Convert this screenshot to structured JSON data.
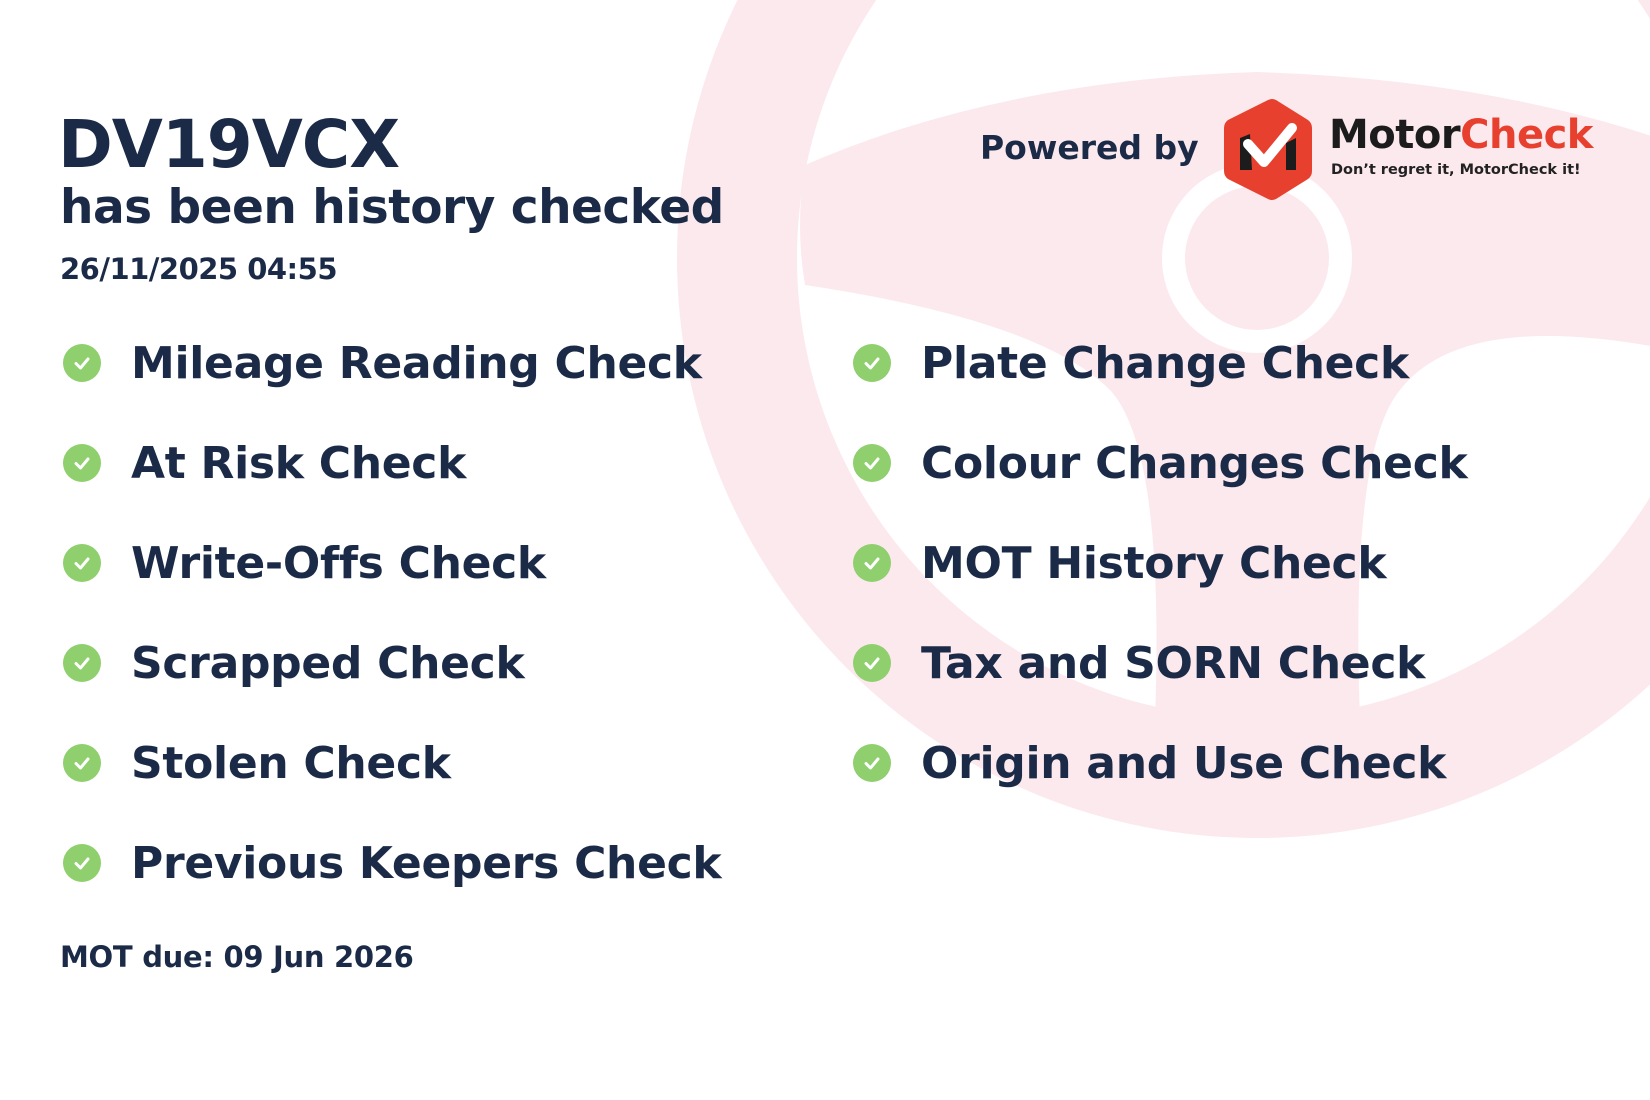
{
  "report": {
    "plate": "DV19VCX",
    "subtitle": "has been history checked",
    "datetime": "26/11/2025 04:55",
    "mot_due": "MOT due: 09 Jun 2026"
  },
  "branding": {
    "powered_by": "Powered by",
    "brand_part1": "Motor",
    "brand_part2": "Check",
    "tagline": "Don’t regret it, MotorCheck it!",
    "brand_red": "#e8402f",
    "brand_dark": "#1c1c1c"
  },
  "checks_left": [
    {
      "label": "Mileage Reading Check",
      "icon": "check-circle-icon"
    },
    {
      "label": "At Risk Check",
      "icon": "check-circle-icon"
    },
    {
      "label": "Write-Offs Check",
      "icon": "check-circle-icon"
    },
    {
      "label": "Scrapped Check",
      "icon": "check-circle-icon"
    },
    {
      "label": "Stolen Check",
      "icon": "check-circle-icon"
    },
    {
      "label": "Previous Keepers Check",
      "icon": "check-circle-icon"
    }
  ],
  "checks_right": [
    {
      "label": "Plate Change Check",
      "icon": "check-circle-icon"
    },
    {
      "label": "Colour Changes Check",
      "icon": "check-circle-icon"
    },
    {
      "label": "MOT History Check",
      "icon": "check-circle-icon"
    },
    {
      "label": "Tax and SORN Check",
      "icon": "check-circle-icon"
    },
    {
      "label": "Origin and Use Check",
      "icon": "check-circle-icon"
    }
  ],
  "colors": {
    "text": "#1b2a47",
    "check_green": "#8fcf6d",
    "background_wheel": "#fce9ee"
  }
}
